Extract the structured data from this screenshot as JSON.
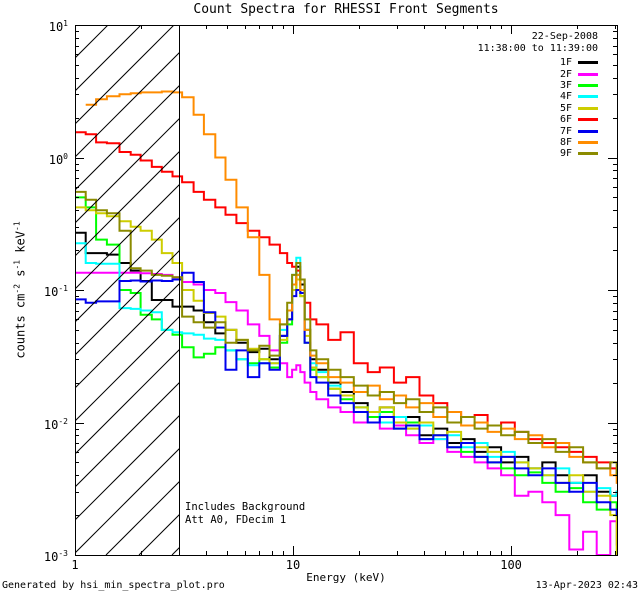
{
  "title": "Count Spectra for RHESSI Front Segments",
  "header": {
    "date": "22-Sep-2008",
    "time_range": "11:38:00 to 11:39:00"
  },
  "annotations": {
    "line1": "Includes Background",
    "line2": "Att A0, FDecim 1"
  },
  "footer": {
    "left": "Generated by hsi_min_spectra_plot.pro",
    "right": "13-Apr-2023 02:43"
  },
  "colors": {
    "axis": "#000000",
    "background": "#FFFFFF"
  },
  "chart_data": {
    "type": "line",
    "subtype": "step-spectrum",
    "x_scale": "log",
    "y_scale": "log",
    "xlabel": "Energy (keV)",
    "ylabel_segments": [
      {
        "t": "counts cm"
      },
      {
        "sup": "-2"
      },
      {
        "t": " s"
      },
      {
        "sup": "-1"
      },
      {
        "t": " keV"
      },
      {
        "sup": "-1"
      }
    ],
    "xlim": [
      1,
      306
    ],
    "ylim": [
      0.001,
      10
    ],
    "grid": false,
    "legend_position": "top-right",
    "x_ticks": [
      {
        "v": 1,
        "label": "1"
      },
      {
        "v": 10,
        "label": "10"
      },
      {
        "v": 100,
        "label": "100"
      }
    ],
    "y_ticks": [
      {
        "v": 10,
        "base": "10",
        "exp": "1"
      },
      {
        "v": 1,
        "base": "10",
        "exp": "0"
      },
      {
        "v": 0.1,
        "base": "10",
        "exp": "-1"
      },
      {
        "v": 0.01,
        "base": "10",
        "exp": "-2"
      },
      {
        "v": 0.001,
        "base": "10",
        "exp": "-3"
      }
    ],
    "hatch_region": {
      "x_min": 1,
      "x_max": 3,
      "style": "diagonal-lines"
    },
    "x": [
      1.0,
      1.12,
      1.25,
      1.4,
      1.6,
      1.8,
      2.0,
      2.25,
      2.5,
      2.8,
      3.1,
      3.5,
      3.9,
      4.4,
      4.9,
      5.5,
      6.2,
      7.0,
      7.8,
      8.7,
      9.4,
      9.9,
      10.35,
      10.8,
      11.3,
      12.0,
      12.8,
      14.5,
      16.5,
      19,
      22,
      25,
      29,
      33,
      38,
      44,
      51,
      59,
      68,
      78,
      90,
      104,
      120,
      139,
      160,
      185,
      214,
      247,
      285,
      305
    ],
    "series": [
      {
        "name": "1F",
        "color": "#000000",
        "values": [
          0.27,
          0.19,
          0.19,
          0.185,
          0.16,
          0.14,
          0.117,
          0.084,
          0.084,
          0.075,
          0.075,
          0.07,
          0.057,
          0.047,
          0.05,
          0.04,
          0.034,
          0.036,
          0.03,
          0.045,
          0.06,
          0.11,
          0.15,
          0.11,
          0.05,
          0.03,
          0.025,
          0.02,
          0.017,
          0.014,
          0.012,
          0.013,
          0.01,
          0.011,
          0.008,
          0.009,
          0.007,
          0.0075,
          0.006,
          0.0065,
          0.005,
          0.0055,
          0.0045,
          0.005,
          0.004,
          0.0035,
          0.004,
          0.003,
          0.0028,
          0.003
        ]
      },
      {
        "name": "2F",
        "color": "#FF00FF",
        "values": [
          0.135,
          0.135,
          0.135,
          0.135,
          0.135,
          0.135,
          0.134,
          0.132,
          0.13,
          0.125,
          0.115,
          0.11,
          0.1,
          0.095,
          0.081,
          0.07,
          0.055,
          0.045,
          0.035,
          0.028,
          0.022,
          0.025,
          0.027,
          0.024,
          0.02,
          0.017,
          0.015,
          0.013,
          0.012,
          0.01,
          0.011,
          0.009,
          0.0095,
          0.008,
          0.007,
          0.0075,
          0.006,
          0.0055,
          0.005,
          0.0045,
          0.004,
          0.0028,
          0.003,
          0.0025,
          0.002,
          0.0011,
          0.0015,
          0.001,
          0.0018,
          0.0012
        ]
      },
      {
        "name": "3F",
        "color": "#00FF00",
        "values": [
          0.5,
          0.42,
          0.24,
          0.22,
          0.1,
          0.095,
          0.065,
          0.06,
          0.05,
          0.046,
          0.037,
          0.031,
          0.033,
          0.037,
          0.035,
          0.03,
          0.028,
          0.03,
          0.026,
          0.04,
          0.055,
          0.1,
          0.13,
          0.09,
          0.04,
          0.025,
          0.022,
          0.018,
          0.015,
          0.013,
          0.011,
          0.012,
          0.009,
          0.01,
          0.0075,
          0.008,
          0.0065,
          0.006,
          0.0055,
          0.005,
          0.0045,
          0.004,
          0.0042,
          0.0035,
          0.003,
          0.0032,
          0.0025,
          0.0022,
          0.0025,
          0.002
        ]
      },
      {
        "name": "4F",
        "color": "#00FFFF",
        "values": [
          0.225,
          0.16,
          0.158,
          0.158,
          0.073,
          0.072,
          0.07,
          0.068,
          0.05,
          0.048,
          0.047,
          0.046,
          0.043,
          0.042,
          0.035,
          0.03,
          0.027,
          0.028,
          0.028,
          0.05,
          0.07,
          0.13,
          0.175,
          0.12,
          0.05,
          0.028,
          0.024,
          0.019,
          0.016,
          0.013,
          0.012,
          0.01,
          0.011,
          0.009,
          0.0095,
          0.0075,
          0.008,
          0.0065,
          0.007,
          0.0055,
          0.006,
          0.005,
          0.0045,
          0.004,
          0.0045,
          0.0035,
          0.003,
          0.0032,
          0.0028,
          0.003
        ]
      },
      {
        "name": "5F",
        "color": "#CDCD00",
        "values": [
          0.42,
          0.4,
          0.38,
          0.36,
          0.33,
          0.3,
          0.28,
          0.24,
          0.19,
          0.16,
          0.1,
          0.083,
          0.067,
          0.063,
          0.05,
          0.042,
          0.036,
          0.03,
          0.028,
          0.042,
          0.06,
          0.1,
          0.12,
          0.09,
          0.045,
          0.026,
          0.022,
          0.018,
          0.016,
          0.013,
          0.012,
          0.013,
          0.01,
          0.009,
          0.01,
          0.008,
          0.0085,
          0.007,
          0.0065,
          0.006,
          0.0055,
          0.005,
          0.0045,
          0.004,
          0.0035,
          0.004,
          0.003,
          0.0028,
          0.002,
          0.001
        ]
      },
      {
        "name": "6F",
        "color": "#FF0000",
        "values": [
          1.55,
          1.5,
          1.3,
          1.28,
          1.1,
          1.05,
          0.95,
          0.85,
          0.78,
          0.72,
          0.65,
          0.55,
          0.48,
          0.42,
          0.37,
          0.32,
          0.28,
          0.25,
          0.22,
          0.19,
          0.16,
          0.15,
          0.14,
          0.12,
          0.08,
          0.06,
          0.055,
          0.042,
          0.048,
          0.028,
          0.024,
          0.026,
          0.02,
          0.022,
          0.016,
          0.014,
          0.012,
          0.011,
          0.0114,
          0.0095,
          0.01,
          0.0085,
          0.0075,
          0.007,
          0.0065,
          0.006,
          0.0055,
          0.005,
          0.0045,
          0.004
        ]
      },
      {
        "name": "7F",
        "color": "#0000EE",
        "values": [
          0.085,
          0.08,
          0.082,
          0.082,
          0.117,
          0.118,
          0.116,
          0.118,
          0.117,
          0.12,
          0.135,
          0.115,
          0.068,
          0.052,
          0.025,
          0.035,
          0.022,
          0.028,
          0.025,
          0.045,
          0.06,
          0.09,
          0.1,
          0.095,
          0.04,
          0.022,
          0.02,
          0.016,
          0.014,
          0.012,
          0.01,
          0.011,
          0.009,
          0.0095,
          0.0075,
          0.008,
          0.0065,
          0.007,
          0.0055,
          0.005,
          0.0055,
          0.0045,
          0.004,
          0.0045,
          0.0035,
          0.003,
          0.0035,
          0.0025,
          0.0022,
          0.002
        ]
      },
      {
        "name": "8F",
        "color": "#FF8C00",
        "values": [
          null,
          2.5,
          2.75,
          2.9,
          3.0,
          3.05,
          3.1,
          3.1,
          3.15,
          3.1,
          2.85,
          2.1,
          1.5,
          1.0,
          0.68,
          0.42,
          0.25,
          0.13,
          0.06,
          0.055,
          0.07,
          0.11,
          0.13,
          0.1,
          0.05,
          0.032,
          0.028,
          0.022,
          0.02,
          0.017,
          0.019,
          0.015,
          0.016,
          0.013,
          0.014,
          0.011,
          0.012,
          0.0095,
          0.01,
          0.0085,
          0.009,
          0.0075,
          0.008,
          0.0065,
          0.007,
          0.0055,
          0.005,
          0.0045,
          0.004,
          0.0035
        ]
      },
      {
        "name": "9F",
        "color": "#8B8B00",
        "values": [
          0.55,
          0.48,
          0.4,
          0.38,
          0.28,
          0.146,
          0.14,
          0.13,
          0.128,
          0.125,
          0.063,
          0.057,
          0.052,
          0.057,
          0.04,
          0.042,
          0.035,
          0.038,
          0.032,
          0.055,
          0.08,
          0.13,
          0.16,
          0.12,
          0.06,
          0.035,
          0.03,
          0.025,
          0.022,
          0.019,
          0.016,
          0.017,
          0.014,
          0.015,
          0.012,
          0.013,
          0.01,
          0.011,
          0.009,
          0.0095,
          0.008,
          0.0085,
          0.007,
          0.0075,
          0.006,
          0.0065,
          0.005,
          0.0045,
          0.005,
          0.004
        ]
      }
    ]
  }
}
